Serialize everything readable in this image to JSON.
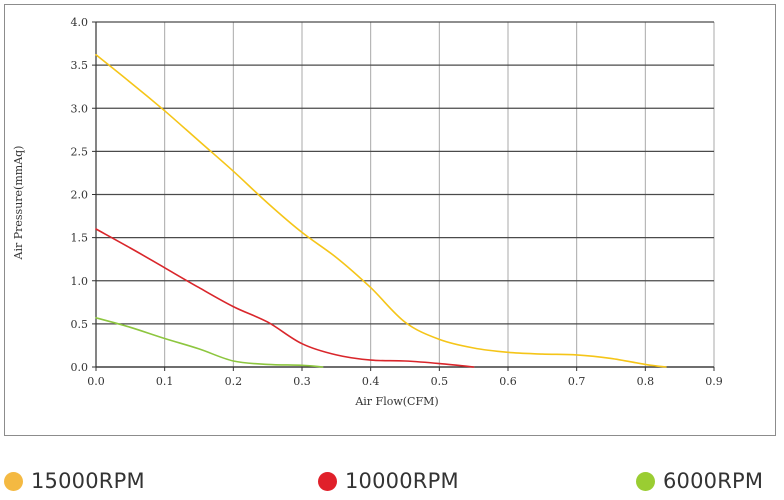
{
  "chart_data": {
    "type": "line",
    "title": "",
    "xlabel": "Air Flow(CFM)",
    "ylabel": "Air Pressure(mmAq)",
    "xlim": [
      0.0,
      0.9
    ],
    "ylim": [
      0.0,
      4.0
    ],
    "xticks": [
      "0.0",
      "0.1",
      "0.2",
      "0.3",
      "0.4",
      "0.5",
      "0.6",
      "0.7",
      "0.8",
      "0.9"
    ],
    "yticks": [
      "0.0",
      "0.5",
      "1.0",
      "1.5",
      "2.0",
      "2.5",
      "3.0",
      "3.5",
      "4.0"
    ],
    "grid": true,
    "legend_position": "bottom",
    "series": [
      {
        "name": "15000RPM",
        "color": "#f5c518",
        "legend_color": "#f4b942",
        "x": [
          0.0,
          0.05,
          0.1,
          0.15,
          0.2,
          0.25,
          0.3,
          0.35,
          0.4,
          0.45,
          0.5,
          0.55,
          0.6,
          0.65,
          0.7,
          0.75,
          0.8,
          0.83
        ],
        "y": [
          3.62,
          3.3,
          2.97,
          2.62,
          2.27,
          1.9,
          1.56,
          1.27,
          0.92,
          0.52,
          0.32,
          0.22,
          0.17,
          0.15,
          0.14,
          0.1,
          0.03,
          0.0
        ]
      },
      {
        "name": "10000RPM",
        "color": "#d9262b",
        "legend_color": "#e0202a",
        "x": [
          0.0,
          0.05,
          0.1,
          0.15,
          0.2,
          0.25,
          0.3,
          0.35,
          0.4,
          0.45,
          0.5,
          0.55
        ],
        "y": [
          1.6,
          1.38,
          1.15,
          0.92,
          0.7,
          0.52,
          0.27,
          0.14,
          0.08,
          0.07,
          0.04,
          0.0
        ]
      },
      {
        "name": "6000RPM",
        "color": "#8dc63f",
        "legend_color": "#9acd32",
        "x": [
          0.0,
          0.05,
          0.1,
          0.15,
          0.2,
          0.25,
          0.3,
          0.33
        ],
        "y": [
          0.57,
          0.46,
          0.33,
          0.21,
          0.07,
          0.03,
          0.02,
          0.0
        ]
      }
    ]
  }
}
